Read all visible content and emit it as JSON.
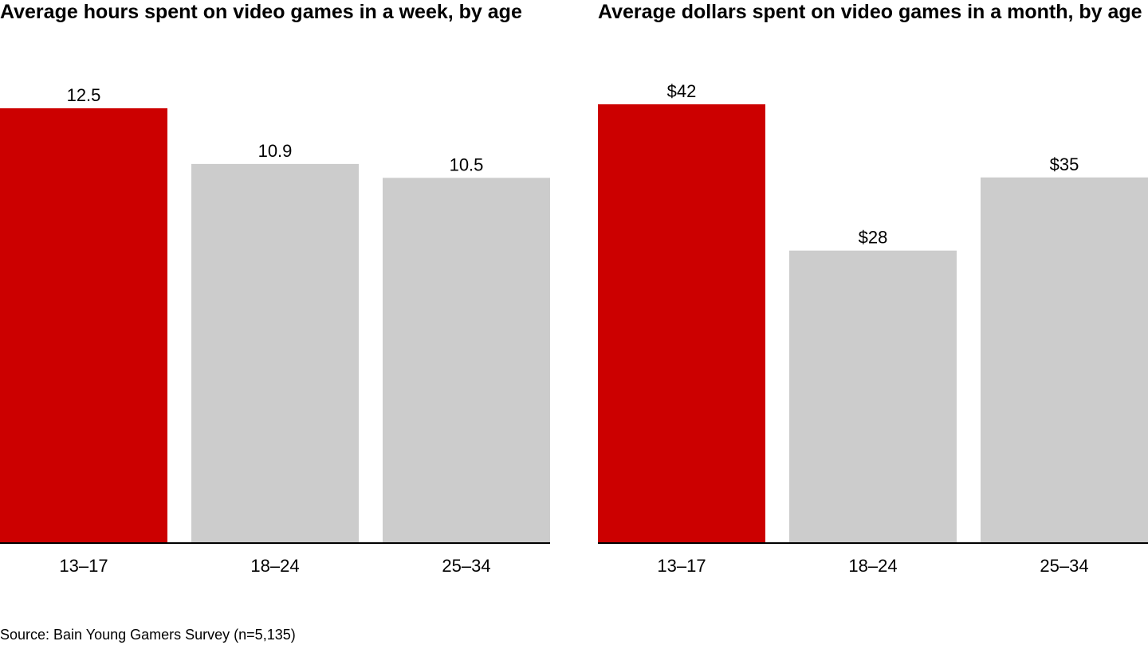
{
  "chart_data": [
    {
      "type": "bar",
      "title": "Average hours spent on video games in a week, by age",
      "categories": [
        "13–17",
        "18–24",
        "25–34"
      ],
      "values": [
        12.5,
        10.9,
        10.5
      ],
      "value_labels": [
        "12.5",
        "10.9",
        "10.5"
      ],
      "ylim": [
        0,
        15
      ],
      "colors": [
        "#cc0000",
        "#cccccc",
        "#cccccc"
      ],
      "grid": false
    },
    {
      "type": "bar",
      "title": "Average dollars spent on video games in a month, by age",
      "categories": [
        "13–17",
        "18–24",
        "25–34"
      ],
      "values": [
        42,
        28,
        35
      ],
      "value_labels": [
        "$42",
        "$28",
        "$35"
      ],
      "ylim": [
        0,
        50
      ],
      "colors": [
        "#cc0000",
        "#cccccc",
        "#cccccc"
      ],
      "grid": false
    }
  ],
  "source": "Source: Bain Young Gamers Survey (n=5,135)"
}
